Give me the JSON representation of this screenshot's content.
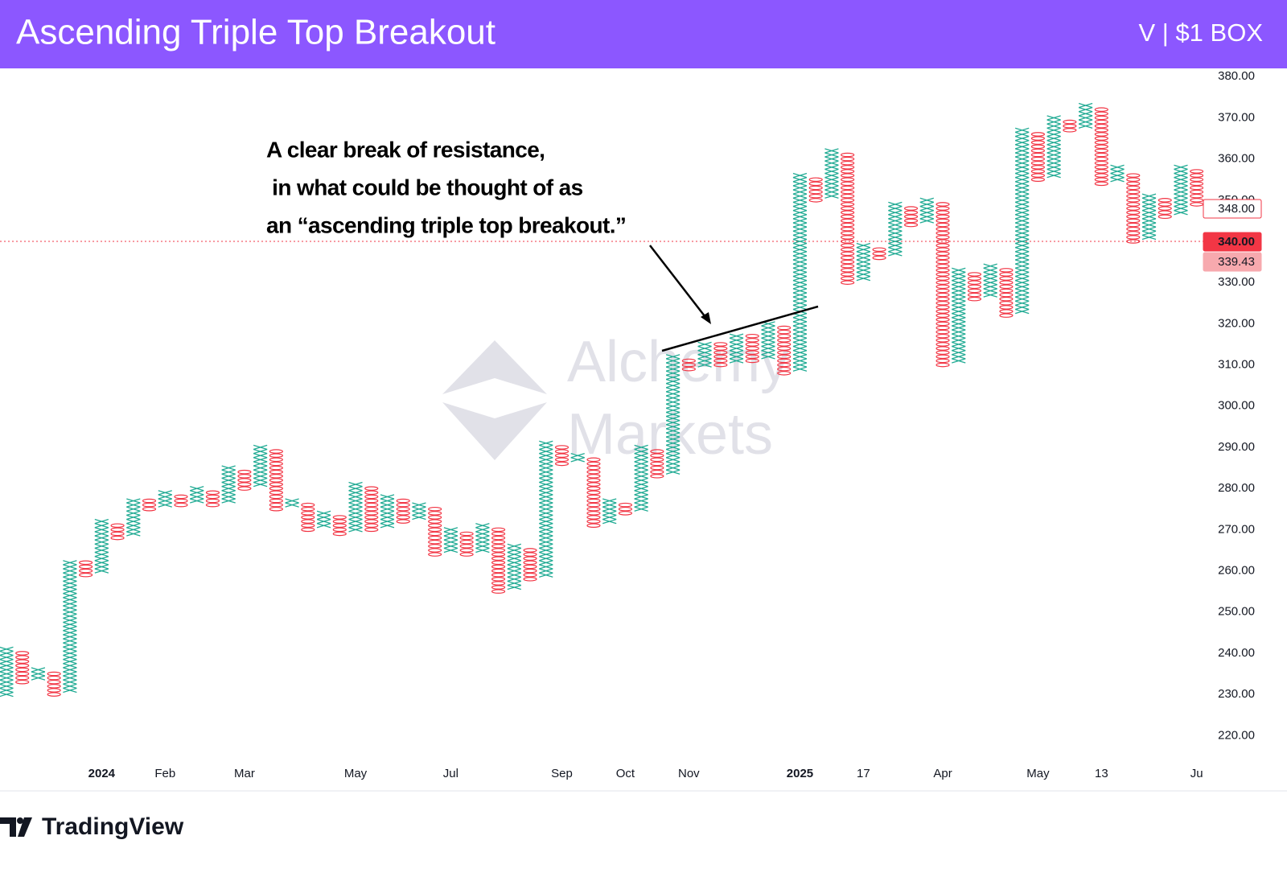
{
  "header": {
    "title": "Ascending Triple Top Breakout",
    "subtitle": "V | $1 BOX"
  },
  "watermark": [
    "Alchemy",
    "Markets"
  ],
  "footer": {
    "brand": "TradingView"
  },
  "chart_data": {
    "type": "point-and-figure",
    "annotation": [
      "A clear break of resistance,",
      " in what could be thought of as",
      "an “ascending triple top breakout.”"
    ],
    "x_color": "#22ab94",
    "o_color": "#f23645",
    "ylim": [
      214,
      382
    ],
    "yticks": [
      {
        "value": 220,
        "label": "220.00"
      },
      {
        "value": 230,
        "label": "230.00"
      },
      {
        "value": 240,
        "label": "240.00"
      },
      {
        "value": 250,
        "label": "250.00"
      },
      {
        "value": 260,
        "label": "260.00"
      },
      {
        "value": 270,
        "label": "270.00"
      },
      {
        "value": 280,
        "label": "280.00"
      },
      {
        "value": 290,
        "label": "290.00"
      },
      {
        "value": 300,
        "label": "300.00"
      },
      {
        "value": 310,
        "label": "310.00"
      },
      {
        "value": 320,
        "label": "320.00"
      },
      {
        "value": 330,
        "label": "330.00"
      },
      {
        "value": 340,
        "label": "340.00"
      },
      {
        "value": 350,
        "label": "350.00"
      },
      {
        "value": 360,
        "label": "360.00"
      },
      {
        "value": 370,
        "label": "370.00"
      },
      {
        "value": 380,
        "label": "380.00"
      }
    ],
    "price_tags": [
      {
        "value": 348,
        "label": "348.00",
        "style": "outline",
        "color": "#f23645"
      },
      {
        "value": 340,
        "label": "340.00",
        "style": "filled",
        "color": "#f23645",
        "line": true
      },
      {
        "value": 339.43,
        "label": "339.43",
        "style": "filled",
        "color": "#f7a9ae"
      }
    ],
    "categories": [
      null,
      null,
      null,
      null,
      null,
      null,
      "2024",
      null,
      null,
      null,
      "Feb",
      null,
      null,
      null,
      null,
      "Mar",
      null,
      null,
      null,
      null,
      null,
      null,
      "May",
      null,
      null,
      null,
      null,
      null,
      "Jul",
      null,
      null,
      null,
      null,
      null,
      null,
      "Sep",
      null,
      null,
      null,
      "Oct",
      null,
      null,
      null,
      "Nov",
      null,
      null,
      null,
      null,
      null,
      null,
      "2025",
      null,
      null,
      null,
      "17",
      null,
      null,
      null,
      null,
      "Apr",
      null,
      null,
      null,
      null,
      null,
      "May",
      null,
      null,
      null,
      "13",
      null,
      null,
      null,
      null,
      null,
      "Ju"
    ],
    "columns": [
      {
        "direction": "up",
        "low": 230,
        "high": 241
      },
      {
        "direction": "down",
        "low": 233,
        "high": 240
      },
      {
        "direction": "up",
        "low": 234,
        "high": 236
      },
      {
        "direction": "down",
        "low": 230,
        "high": 235
      },
      {
        "direction": "up",
        "low": 231,
        "high": 262
      },
      {
        "direction": "down",
        "low": 259,
        "high": 262
      },
      {
        "direction": "up",
        "low": 260,
        "high": 272
      },
      {
        "direction": "down",
        "low": 268,
        "high": 271
      },
      {
        "direction": "up",
        "low": 269,
        "high": 277
      },
      {
        "direction": "down",
        "low": 275,
        "high": 277
      },
      {
        "direction": "up",
        "low": 276,
        "high": 279
      },
      {
        "direction": "down",
        "low": 276,
        "high": 278
      },
      {
        "direction": "up",
        "low": 277,
        "high": 280
      },
      {
        "direction": "down",
        "low": 276,
        "high": 279
      },
      {
        "direction": "up",
        "low": 277,
        "high": 285
      },
      {
        "direction": "down",
        "low": 280,
        "high": 284
      },
      {
        "direction": "up",
        "low": 281,
        "high": 290
      },
      {
        "direction": "down",
        "low": 275,
        "high": 289
      },
      {
        "direction": "up",
        "low": 276,
        "high": 277
      },
      {
        "direction": "down",
        "low": 270,
        "high": 276
      },
      {
        "direction": "up",
        "low": 271,
        "high": 274
      },
      {
        "direction": "down",
        "low": 269,
        "high": 273
      },
      {
        "direction": "up",
        "low": 270,
        "high": 281
      },
      {
        "direction": "down",
        "low": 270,
        "high": 280
      },
      {
        "direction": "up",
        "low": 271,
        "high": 278
      },
      {
        "direction": "down",
        "low": 272,
        "high": 277
      },
      {
        "direction": "up",
        "low": 273,
        "high": 276
      },
      {
        "direction": "down",
        "low": 264,
        "high": 275
      },
      {
        "direction": "up",
        "low": 265,
        "high": 270
      },
      {
        "direction": "down",
        "low": 264,
        "high": 269
      },
      {
        "direction": "up",
        "low": 265,
        "high": 271
      },
      {
        "direction": "down",
        "low": 255,
        "high": 270
      },
      {
        "direction": "up",
        "low": 256,
        "high": 266
      },
      {
        "direction": "down",
        "low": 258,
        "high": 265
      },
      {
        "direction": "up",
        "low": 259,
        "high": 291
      },
      {
        "direction": "down",
        "low": 286,
        "high": 290
      },
      {
        "direction": "up",
        "low": 287,
        "high": 288
      },
      {
        "direction": "down",
        "low": 271,
        "high": 287
      },
      {
        "direction": "up",
        "low": 272,
        "high": 277
      },
      {
        "direction": "down",
        "low": 274,
        "high": 276
      },
      {
        "direction": "up",
        "low": 275,
        "high": 290
      },
      {
        "direction": "down",
        "low": 283,
        "high": 289
      },
      {
        "direction": "up",
        "low": 284,
        "high": 312
      },
      {
        "direction": "down",
        "low": 309,
        "high": 311
      },
      {
        "direction": "up",
        "low": 310,
        "high": 315
      },
      {
        "direction": "down",
        "low": 310,
        "high": 315
      },
      {
        "direction": "up",
        "low": 311,
        "high": 317
      },
      {
        "direction": "down",
        "low": 311,
        "high": 317
      },
      {
        "direction": "up",
        "low": 312,
        "high": 320
      },
      {
        "direction": "down",
        "low": 308,
        "high": 319
      },
      {
        "direction": "up",
        "low": 309,
        "high": 356
      },
      {
        "direction": "down",
        "low": 350,
        "high": 355
      },
      {
        "direction": "up",
        "low": 351,
        "high": 362
      },
      {
        "direction": "down",
        "low": 330,
        "high": 361
      },
      {
        "direction": "up",
        "low": 331,
        "high": 339
      },
      {
        "direction": "down",
        "low": 336,
        "high": 338
      },
      {
        "direction": "up",
        "low": 337,
        "high": 349
      },
      {
        "direction": "down",
        "low": 344,
        "high": 348
      },
      {
        "direction": "up",
        "low": 345,
        "high": 350
      },
      {
        "direction": "down",
        "low": 310,
        "high": 349
      },
      {
        "direction": "up",
        "low": 311,
        "high": 333
      },
      {
        "direction": "down",
        "low": 326,
        "high": 332
      },
      {
        "direction": "up",
        "low": 327,
        "high": 334
      },
      {
        "direction": "down",
        "low": 322,
        "high": 333
      },
      {
        "direction": "up",
        "low": 323,
        "high": 367
      },
      {
        "direction": "down",
        "low": 355,
        "high": 366
      },
      {
        "direction": "up",
        "low": 356,
        "high": 370
      },
      {
        "direction": "down",
        "low": 367,
        "high": 369
      },
      {
        "direction": "up",
        "low": 368,
        "high": 373
      },
      {
        "direction": "down",
        "low": 354,
        "high": 372
      },
      {
        "direction": "up",
        "low": 355,
        "high": 358
      },
      {
        "direction": "down",
        "low": 340,
        "high": 356
      },
      {
        "direction": "up",
        "low": 341,
        "high": 351
      },
      {
        "direction": "down",
        "low": 346,
        "high": 350
      },
      {
        "direction": "up",
        "low": 347,
        "high": 358
      },
      {
        "direction": "down",
        "low": 349,
        "high": 357
      }
    ]
  }
}
